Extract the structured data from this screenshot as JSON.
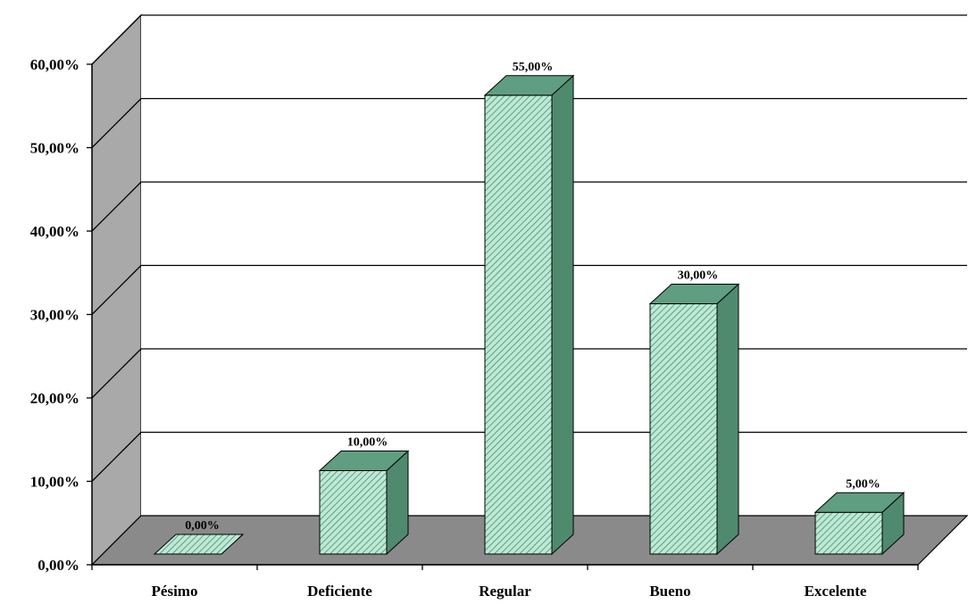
{
  "chart_data": {
    "type": "bar",
    "categories": [
      "Pésimo",
      "Deficiente",
      "Regular",
      "Bueno",
      "Excelente"
    ],
    "values": [
      0,
      10,
      55,
      30,
      5
    ],
    "value_labels": [
      "0,00%",
      "10,00%",
      "55,00%",
      "30,00%",
      "5,00%"
    ],
    "y_ticks": [
      "0,00%",
      "10,00%",
      "20,00%",
      "30,00%",
      "40,00%",
      "50,00%",
      "60,00%"
    ],
    "ylim": [
      0,
      60
    ],
    "grid": true,
    "legend": "none",
    "title": "",
    "xlabel": "",
    "ylabel": "",
    "style": "3d",
    "colors": {
      "bar_front": "#bfe8d6",
      "bar_hatch": "#3f8f6c",
      "bar_top": "#5f9e80",
      "bar_side": "#4f8a6e",
      "wall": "#a9a9a9",
      "floor": "#8a8a8a"
    }
  }
}
